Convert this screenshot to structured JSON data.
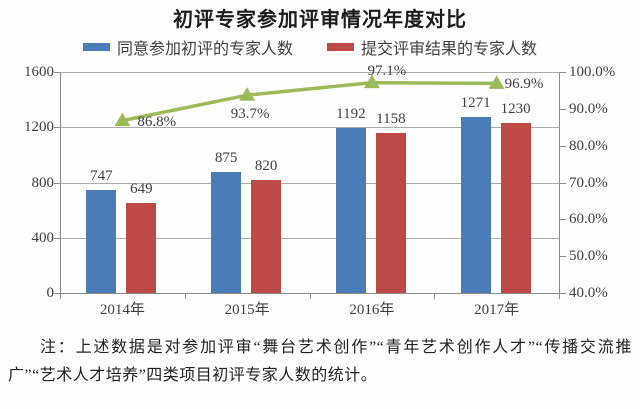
{
  "chart_data": {
    "type": "bar",
    "title": "初评专家参加评审情况年度对比",
    "categories": [
      "2014年",
      "2015年",
      "2016年",
      "2017年"
    ],
    "series": [
      {
        "name": "同意参加初评的专家人数",
        "kind": "bar",
        "color": "#4a7db8",
        "values": [
          747,
          875,
          1192,
          1271
        ]
      },
      {
        "name": "提交评审结果的专家人数",
        "kind": "bar",
        "color": "#be4a47",
        "values": [
          649,
          820,
          1158,
          1230
        ]
      },
      {
        "name": "",
        "kind": "line",
        "color": "#9bbb59",
        "axis": "right",
        "values": [
          86.8,
          93.7,
          97.1,
          96.9
        ],
        "point_labels": [
          "86.8%",
          "93.7%",
          "97.1%",
          "96.9%"
        ]
      }
    ],
    "left_axis": {
      "min": 0,
      "max": 1600,
      "ticks": [
        "1600",
        "1200",
        "800",
        "400",
        "0"
      ]
    },
    "right_axis": {
      "min": 40,
      "max": 100,
      "ticks": [
        "100.0%",
        "90.0%",
        "80.0%",
        "70.0%",
        "60.0%",
        "50.0%",
        "40.0%"
      ]
    },
    "grid": true,
    "legend_position": "top"
  },
  "note": {
    "text": "注：上述数据是对参加评审“舞台艺术创作”“青年艺术创作人才”“传播交流推广”“艺术人才培养”四类项目初评专家人数的统计。"
  },
  "colors": {
    "bar_blue": "#4a7db8",
    "bar_red": "#be4a47",
    "line_green": "#9bbb59",
    "grid": "#ababab",
    "axis": "#8a8a8a",
    "text": "#3f3f3f"
  }
}
